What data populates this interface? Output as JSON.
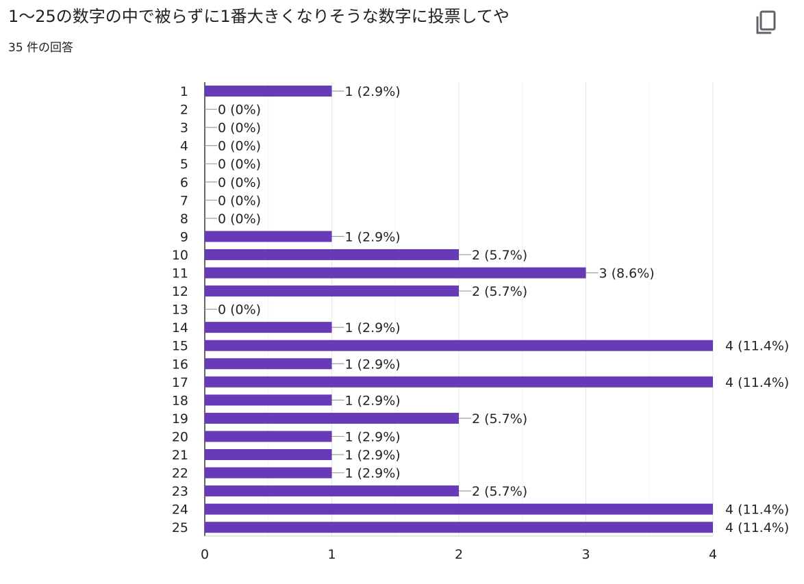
{
  "header": {
    "title": "1〜25の数字の中で被らずに1番大きくなりそうな数字に投票してや",
    "response_count": "35 件の回答"
  },
  "icons": {
    "copy": "copy-icon"
  },
  "colors": {
    "bar": "#673ab7",
    "grid": "#e6e6e6",
    "axis": "#333333",
    "leader": "#9e9e9e"
  },
  "chart_data": {
    "type": "bar",
    "orientation": "horizontal",
    "categories": [
      "1",
      "2",
      "3",
      "4",
      "5",
      "6",
      "7",
      "8",
      "9",
      "10",
      "11",
      "12",
      "13",
      "14",
      "15",
      "16",
      "17",
      "18",
      "19",
      "20",
      "21",
      "22",
      "23",
      "24",
      "25"
    ],
    "values": [
      1,
      0,
      0,
      0,
      0,
      0,
      0,
      0,
      1,
      2,
      3,
      2,
      0,
      1,
      4,
      1,
      4,
      1,
      2,
      1,
      1,
      1,
      2,
      4,
      4
    ],
    "data_labels": [
      "1 (2.9%)",
      "0 (0%)",
      "0 (0%)",
      "0 (0%)",
      "0 (0%)",
      "0 (0%)",
      "0 (0%)",
      "0 (0%)",
      "1 (2.9%)",
      "2 (5.7%)",
      "3 (8.6%)",
      "2 (5.7%)",
      "0 (0%)",
      "1 (2.9%)",
      "4 (11.4%)",
      "1 (2.9%)",
      "4 (11.4%)",
      "1 (2.9%)",
      "2 (5.7%)",
      "1 (2.9%)",
      "1 (2.9%)",
      "1 (2.9%)",
      "2 (5.7%)",
      "4 (11.4%)",
      "4 (11.4%)"
    ],
    "x_ticks": [
      "0",
      "1",
      "2",
      "3",
      "4"
    ],
    "xlim": [
      0,
      4
    ],
    "grid": true
  }
}
